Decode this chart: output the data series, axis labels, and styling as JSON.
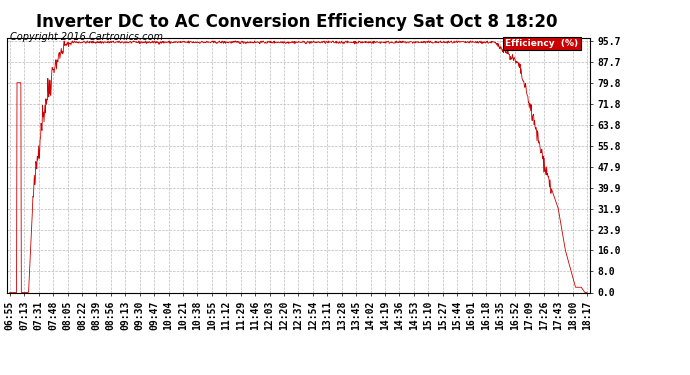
{
  "title": "Inverter DC to AC Conversion Efficiency Sat Oct 8 18:20",
  "copyright": "Copyright 2016 Cartronics.com",
  "legend_label": "Efficiency  (%)",
  "legend_bg": "#cc0000",
  "legend_text_color": "#ffffff",
  "line_color": "#cc0000",
  "background_color": "#ffffff",
  "grid_color": "#bbbbbb",
  "yticks": [
    0.0,
    8.0,
    16.0,
    23.9,
    31.9,
    39.9,
    47.9,
    55.8,
    63.8,
    71.8,
    79.8,
    87.7,
    95.7
  ],
  "xtick_labels": [
    "06:55",
    "07:13",
    "07:31",
    "07:48",
    "08:05",
    "08:22",
    "08:39",
    "08:56",
    "09:13",
    "09:30",
    "09:47",
    "10:04",
    "10:21",
    "10:38",
    "10:55",
    "11:12",
    "11:29",
    "11:46",
    "12:03",
    "12:20",
    "12:37",
    "12:54",
    "13:11",
    "13:28",
    "13:45",
    "14:02",
    "14:19",
    "14:36",
    "14:53",
    "15:10",
    "15:27",
    "15:44",
    "16:01",
    "16:18",
    "16:35",
    "16:52",
    "17:09",
    "17:26",
    "17:43",
    "18:00",
    "18:17"
  ],
  "ylim": [
    0.0,
    97.0
  ],
  "title_fontsize": 12,
  "tick_fontsize": 7,
  "copyright_fontsize": 7
}
